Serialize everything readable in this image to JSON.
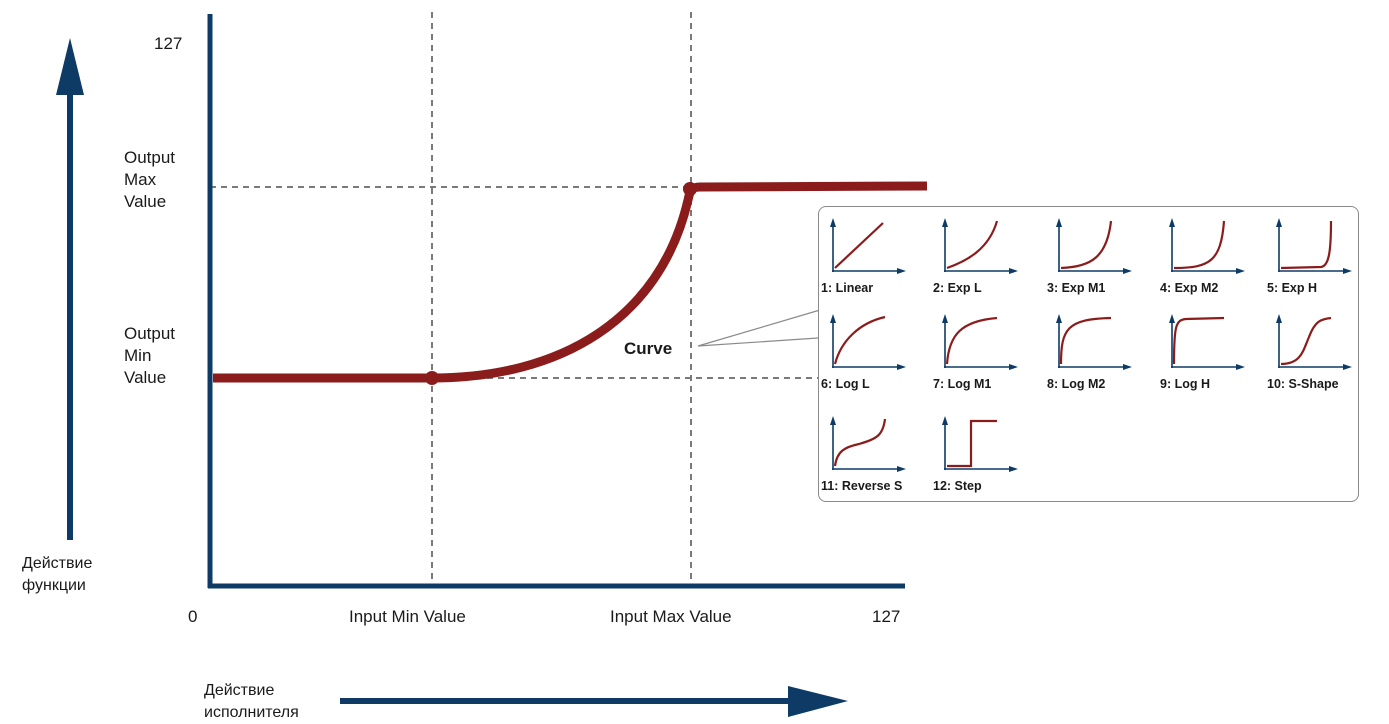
{
  "axes": {
    "y_top_label": "127",
    "x_origin_label": "0",
    "x_end_label": "127",
    "output_max_label": "Output\nMax\nValue",
    "output_min_label": "Output\nMin\nValue",
    "input_min_label": "Input Min Value",
    "input_max_label": "Input Max Value"
  },
  "arrows": {
    "vertical_label": "Действие\nфункции",
    "horizontal_label": "Действие\nисполнителя"
  },
  "curve_callout": "Curve",
  "colors": {
    "axis": "#0d3b66",
    "curve": "#8b1c1c",
    "dash": "#7a7a7a",
    "arrow": "#0d3b66"
  },
  "curves": [
    {
      "id": "linear",
      "label": "1: Linear"
    },
    {
      "id": "exp-l",
      "label": "2: Exp L"
    },
    {
      "id": "exp-m1",
      "label": "3: Exp M1"
    },
    {
      "id": "exp-m2",
      "label": "4: Exp M2"
    },
    {
      "id": "exp-h",
      "label": "5: Exp H"
    },
    {
      "id": "log-l",
      "label": "6: Log L"
    },
    {
      "id": "log-m1",
      "label": "7: Log M1"
    },
    {
      "id": "log-m2",
      "label": "8: Log M2"
    },
    {
      "id": "log-h",
      "label": "9: Log H"
    },
    {
      "id": "s-shape",
      "label": "10: S-Shape"
    },
    {
      "id": "reverse-s",
      "label": "11: Reverse S"
    },
    {
      "id": "step",
      "label": "12: Step"
    }
  ]
}
